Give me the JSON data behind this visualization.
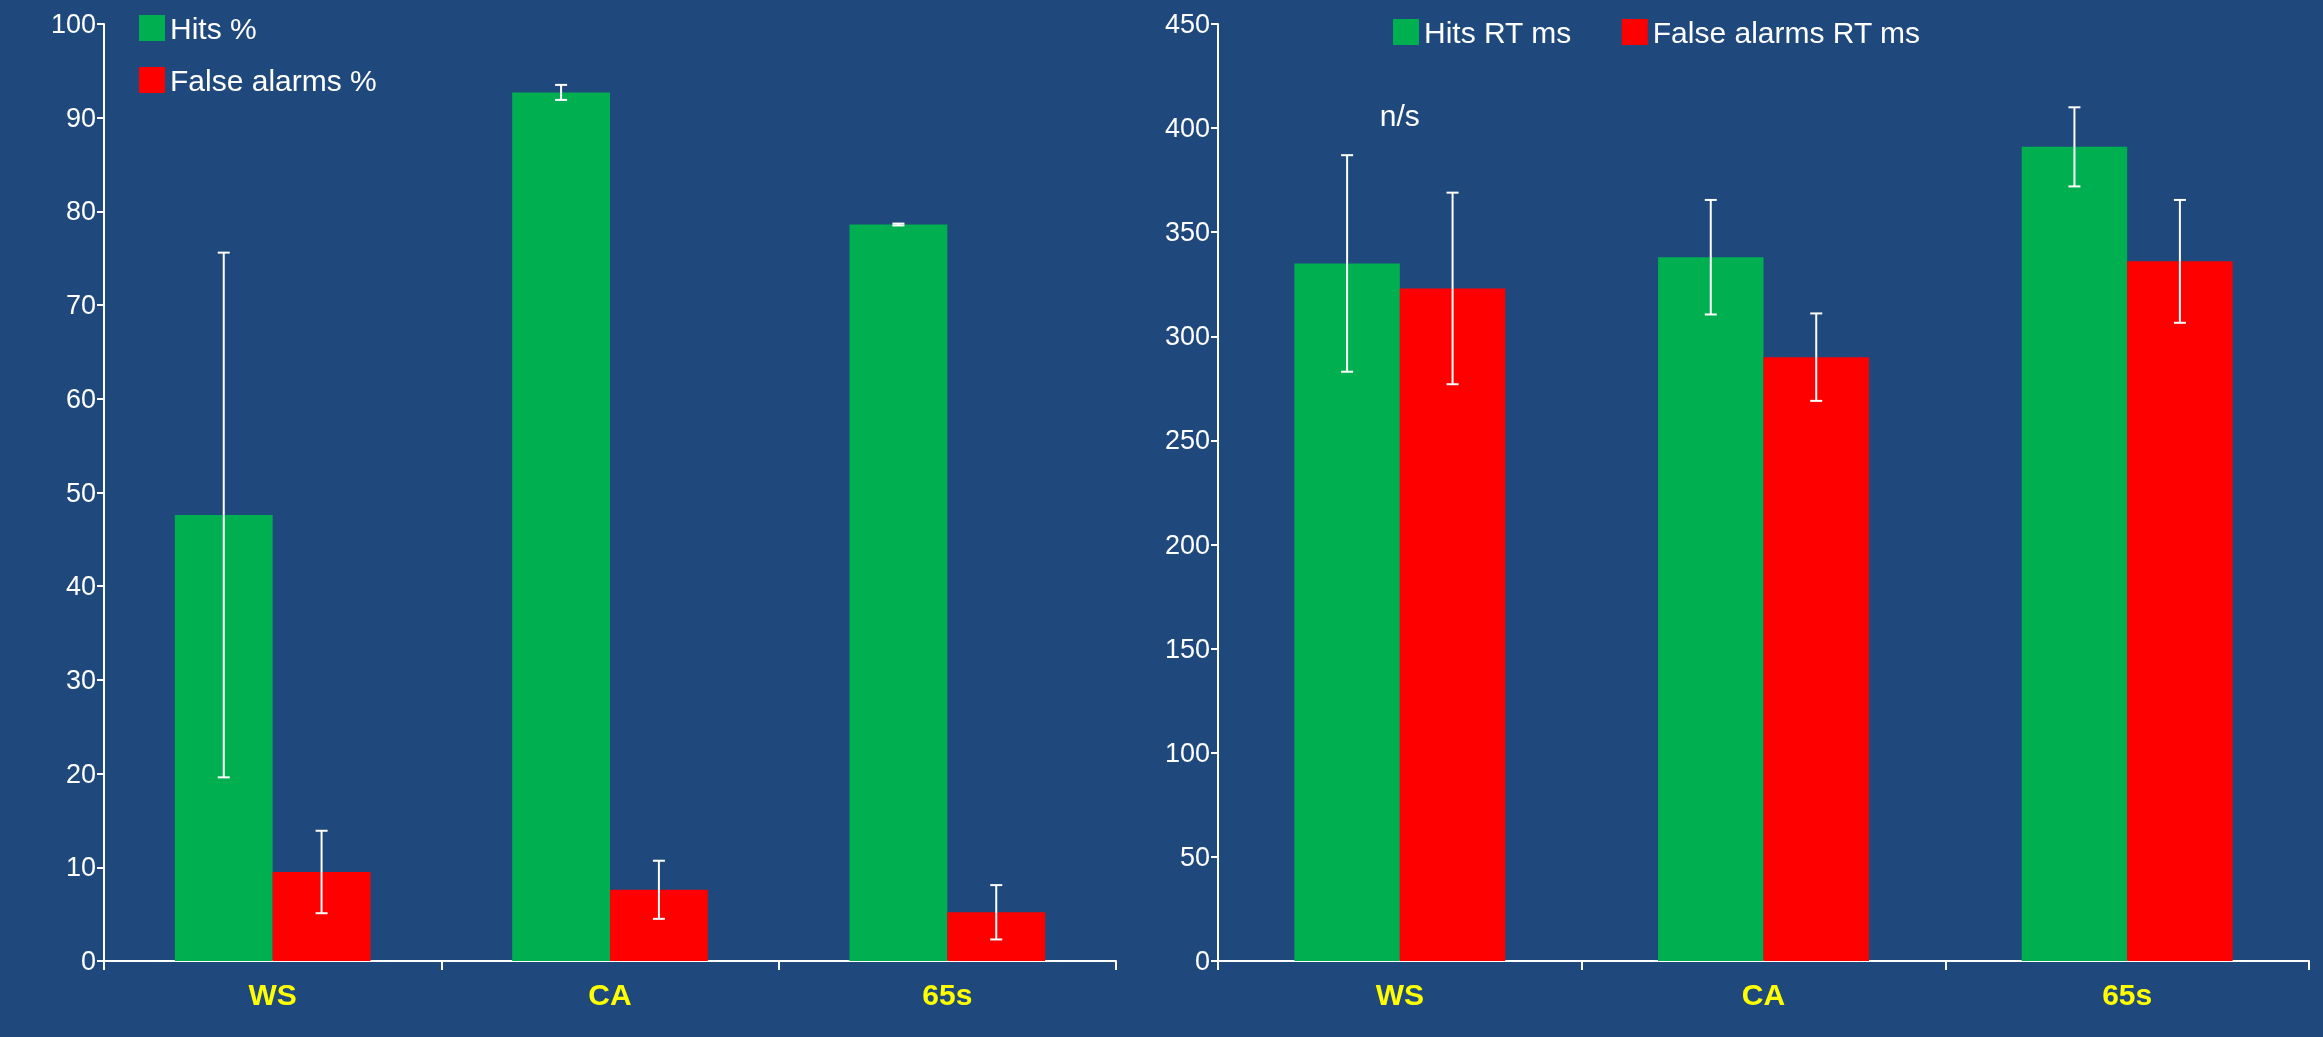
{
  "chart_data": [
    {
      "type": "bar",
      "categories": [
        "WS",
        "CA",
        "65s"
      ],
      "series": [
        {
          "name": "Hits %",
          "color": "#00b050",
          "values": [
            47.6,
            92.7,
            78.6
          ],
          "errors": [
            28,
            0.8,
            0.1
          ]
        },
        {
          "name": "False alarms %",
          "color": "#ff0000",
          "values": [
            9.5,
            7.6,
            5.2
          ],
          "errors": [
            4.4,
            3.1,
            2.9
          ]
        }
      ],
      "ylim": [
        0,
        100
      ],
      "yticks": [
        0,
        10,
        20,
        30,
        40,
        50,
        60,
        70,
        80,
        90,
        100
      ],
      "grid": false,
      "legend": "top left"
    },
    {
      "type": "bar",
      "categories": [
        "WS",
        "CA",
        "65s"
      ],
      "series": [
        {
          "name": "Hits RT ms",
          "color": "#00b050",
          "values": [
            335,
            338,
            391
          ],
          "errors": [
            52,
            27.5,
            19
          ]
        },
        {
          "name": "False alarms RT ms",
          "color": "#ff0000",
          "values": [
            323,
            290,
            336
          ],
          "errors": [
            46,
            21,
            29.5
          ]
        }
      ],
      "ylim": [
        0,
        450
      ],
      "yticks": [
        0,
        50,
        100,
        150,
        200,
        250,
        300,
        350,
        400,
        450
      ],
      "grid": false,
      "legend": "top",
      "annotations": [
        "n/s"
      ]
    }
  ]
}
